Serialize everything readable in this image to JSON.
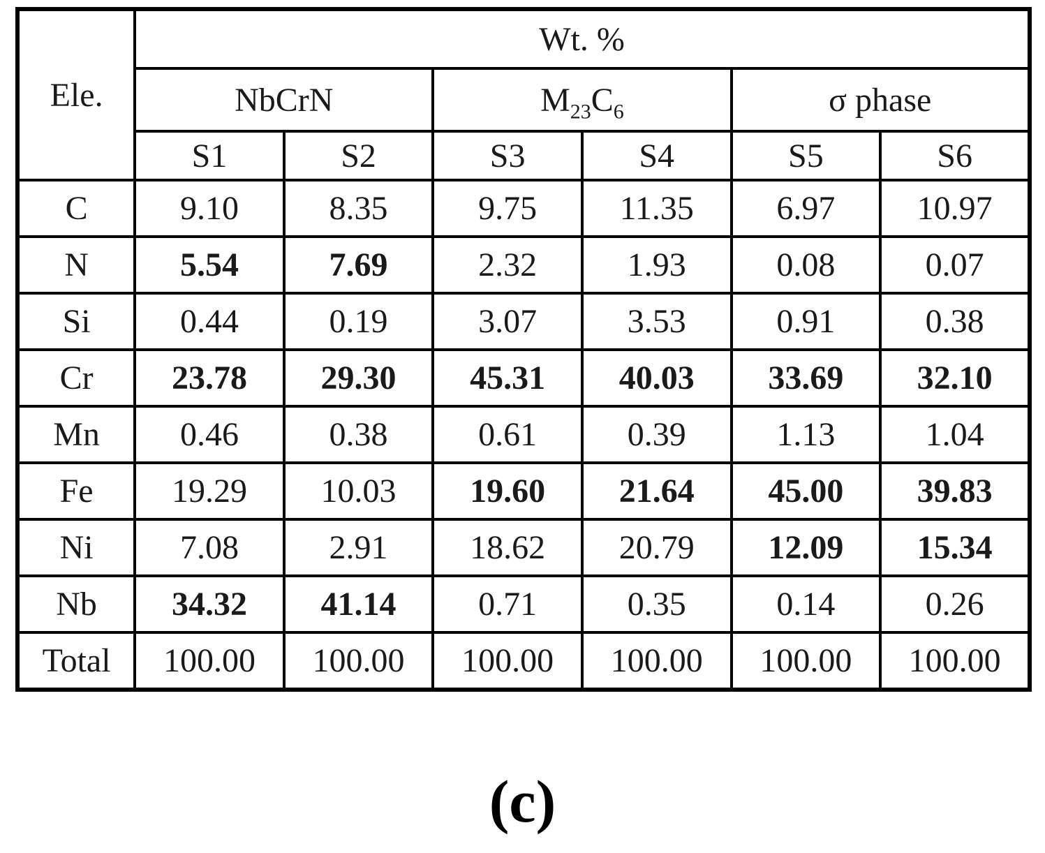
{
  "table": {
    "corner_label": "Ele.",
    "top_header": "Wt. %",
    "phases": [
      {
        "label": "NbCrN"
      },
      {
        "base1": "M",
        "sub1": "23",
        "base2": "C",
        "sub2": "6"
      },
      {
        "label": "σ phase"
      }
    ],
    "sample_headers": [
      "S1",
      "S2",
      "S3",
      "S4",
      "S5",
      "S6"
    ],
    "rows": [
      {
        "element": "C",
        "values": [
          "9.10",
          "8.35",
          "9.75",
          "11.35",
          "6.97",
          "10.97"
        ],
        "red": [
          0,
          0,
          0,
          0,
          0,
          0
        ]
      },
      {
        "element": "N",
        "values": [
          "5.54",
          "7.69",
          "2.32",
          "1.93",
          "0.08",
          "0.07"
        ],
        "red": [
          1,
          1,
          0,
          0,
          0,
          0
        ]
      },
      {
        "element": "Si",
        "values": [
          "0.44",
          "0.19",
          "3.07",
          "3.53",
          "0.91",
          "0.38"
        ],
        "red": [
          0,
          0,
          0,
          0,
          0,
          0
        ]
      },
      {
        "element": "Cr",
        "values": [
          "23.78",
          "29.30",
          "45.31",
          "40.03",
          "33.69",
          "32.10"
        ],
        "red": [
          1,
          1,
          1,
          1,
          1,
          1
        ]
      },
      {
        "element": "Mn",
        "values": [
          "0.46",
          "0.38",
          "0.61",
          "0.39",
          "1.13",
          "1.04"
        ],
        "red": [
          0,
          0,
          0,
          0,
          0,
          0
        ]
      },
      {
        "element": "Fe",
        "values": [
          "19.29",
          "10.03",
          "19.60",
          "21.64",
          "45.00",
          "39.83"
        ],
        "red": [
          0,
          0,
          1,
          1,
          1,
          1
        ]
      },
      {
        "element": "Ni",
        "values": [
          "7.08",
          "2.91",
          "18.62",
          "20.79",
          "12.09",
          "15.34"
        ],
        "red": [
          0,
          0,
          0,
          0,
          1,
          1
        ]
      },
      {
        "element": "Nb",
        "values": [
          "34.32",
          "41.14",
          "0.71",
          "0.35",
          "0.14",
          "0.26"
        ],
        "red": [
          1,
          1,
          0,
          0,
          0,
          0
        ]
      },
      {
        "element": "Total",
        "values": [
          "100.00",
          "100.00",
          "100.00",
          "100.00",
          "100.00",
          "100.00"
        ],
        "red": [
          0,
          0,
          0,
          0,
          0,
          0
        ]
      }
    ]
  },
  "caption": "(c)",
  "colors": {
    "highlight": "#ff0000",
    "text": "#1a1a1a",
    "border": "#000000",
    "background": "#ffffff"
  }
}
